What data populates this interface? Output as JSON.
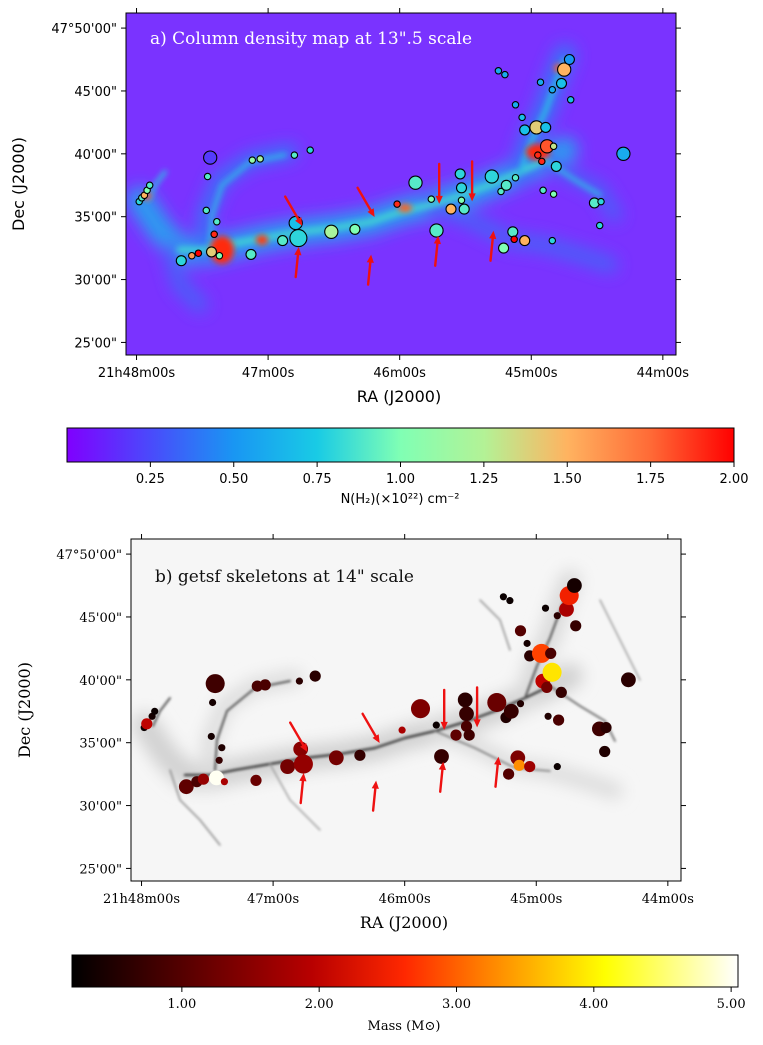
{
  "chart_data": [
    {
      "type": "scatter",
      "panel": "a",
      "title": "a) Column density map at 13\".5 scale",
      "background": "column density image (N(H2) map)",
      "xlabel": "RA (J2000)",
      "ylabel": "Dec (J2000)",
      "x_ticks": [
        {
          "ra_min": 48,
          "label": "21h48m00s"
        },
        {
          "ra_min": 47,
          "label": "47m00s"
        },
        {
          "ra_min": 46,
          "label": "46m00s"
        },
        {
          "ra_min": 45,
          "label": "45m00s"
        },
        {
          "ra_min": 44,
          "label": "44m00s"
        }
      ],
      "y_ticks": [
        {
          "dec_min": 50,
          "label": "47°50'00\""
        },
        {
          "dec_min": 45,
          "label": "45'00\""
        },
        {
          "dec_min": 40,
          "label": "40'00\""
        },
        {
          "dec_min": 35,
          "label": "35'00\""
        },
        {
          "dec_min": 30,
          "label": "30'00\""
        },
        {
          "dec_min": 25,
          "label": "25'00\""
        }
      ],
      "xlim_ra_min": [
        48.08,
        43.9
      ],
      "ylim_dec_min": [
        24.0,
        51.2
      ],
      "colorbar": {
        "label": "N(H₂)(×10²²) cm⁻²",
        "range": [
          0.0,
          2.0
        ],
        "ticks": [
          "0.25",
          "0.50",
          "0.75",
          "1.00",
          "1.25",
          "1.50",
          "1.75",
          "2.00"
        ],
        "colormap": "rainbow (violet → red)"
      },
      "cores": [
        {
          "ra": 47.44,
          "dec": 39.7,
          "size": "L",
          "val": 0.2
        },
        {
          "ra": 47.98,
          "dec": 36.2,
          "size": "S",
          "val": 0.8
        },
        {
          "ra": 47.96,
          "dec": 36.5,
          "size": "S",
          "val": 0.9
        },
        {
          "ra": 47.94,
          "dec": 36.7,
          "size": "S",
          "val": 1.5
        },
        {
          "ra": 47.92,
          "dec": 37.1,
          "size": "S",
          "val": 1.0
        },
        {
          "ra": 47.9,
          "dec": 37.5,
          "size": "S",
          "val": 0.9
        },
        {
          "ra": 47.66,
          "dec": 31.5,
          "size": "M",
          "val": 0.8
        },
        {
          "ra": 47.58,
          "dec": 31.9,
          "size": "S",
          "val": 1.6
        },
        {
          "ra": 47.53,
          "dec": 32.1,
          "size": "S",
          "val": 2.0
        },
        {
          "ra": 47.47,
          "dec": 35.5,
          "size": "S",
          "val": 0.9
        },
        {
          "ra": 47.46,
          "dec": 38.2,
          "size": "S",
          "val": 0.9
        },
        {
          "ra": 47.43,
          "dec": 32.2,
          "size": "M",
          "val": 1.4
        },
        {
          "ra": 47.41,
          "dec": 33.6,
          "size": "S",
          "val": 1.9
        },
        {
          "ra": 47.39,
          "dec": 34.6,
          "size": "S",
          "val": 0.9
        },
        {
          "ra": 47.37,
          "dec": 31.9,
          "size": "S",
          "val": 1.0
        },
        {
          "ra": 47.13,
          "dec": 32.0,
          "size": "M",
          "val": 0.9
        },
        {
          "ra": 47.12,
          "dec": 39.5,
          "size": "S",
          "val": 1.1
        },
        {
          "ra": 47.06,
          "dec": 39.6,
          "size": "S",
          "val": 1.2
        },
        {
          "ra": 46.89,
          "dec": 33.1,
          "size": "M",
          "val": 0.9
        },
        {
          "ra": 46.8,
          "dec": 39.9,
          "size": "S",
          "val": 0.9
        },
        {
          "ra": 46.79,
          "dec": 34.5,
          "size": "L",
          "val": 0.7
        },
        {
          "ra": 46.77,
          "dec": 33.3,
          "size": "XL",
          "val": 0.8
        },
        {
          "ra": 46.68,
          "dec": 40.3,
          "size": "S",
          "val": 0.8
        },
        {
          "ra": 46.52,
          "dec": 33.8,
          "size": "L",
          "val": 1.2
        },
        {
          "ra": 46.34,
          "dec": 34.0,
          "size": "M",
          "val": 1.0
        },
        {
          "ra": 46.02,
          "dec": 36.0,
          "size": "S",
          "val": 1.9
        },
        {
          "ra": 45.88,
          "dec": 37.7,
          "size": "L",
          "val": 0.9
        },
        {
          "ra": 45.76,
          "dec": 36.4,
          "size": "S",
          "val": 1.0
        },
        {
          "ra": 45.72,
          "dec": 33.9,
          "size": "L",
          "val": 0.9
        },
        {
          "ra": 45.61,
          "dec": 35.6,
          "size": "M",
          "val": 1.5
        },
        {
          "ra": 45.54,
          "dec": 38.4,
          "size": "M",
          "val": 0.8
        },
        {
          "ra": 45.53,
          "dec": 37.3,
          "size": "M",
          "val": 0.8
        },
        {
          "ra": 45.53,
          "dec": 36.3,
          "size": "S",
          "val": 1.0
        },
        {
          "ra": 45.51,
          "dec": 35.6,
          "size": "M",
          "val": 0.9
        },
        {
          "ra": 45.3,
          "dec": 38.2,
          "size": "L",
          "val": 0.8
        },
        {
          "ra": 45.25,
          "dec": 46.6,
          "size": "S",
          "val": 0.6
        },
        {
          "ra": 45.23,
          "dec": 37.0,
          "size": "S",
          "val": 0.9
        },
        {
          "ra": 45.21,
          "dec": 32.5,
          "size": "M",
          "val": 1.0
        },
        {
          "ra": 45.2,
          "dec": 46.3,
          "size": "S",
          "val": 0.6
        },
        {
          "ra": 45.19,
          "dec": 37.5,
          "size": "M",
          "val": 0.9
        },
        {
          "ra": 45.14,
          "dec": 33.8,
          "size": "M",
          "val": 0.9
        },
        {
          "ra": 45.13,
          "dec": 33.2,
          "size": "S",
          "val": 2.0
        },
        {
          "ra": 45.12,
          "dec": 38.1,
          "size": "S",
          "val": 0.9
        },
        {
          "ra": 45.12,
          "dec": 43.9,
          "size": "S",
          "val": 0.6
        },
        {
          "ra": 45.07,
          "dec": 42.9,
          "size": "S",
          "val": 0.7
        },
        {
          "ra": 45.05,
          "dec": 33.1,
          "size": "M",
          "val": 1.5
        },
        {
          "ra": 45.05,
          "dec": 41.9,
          "size": "M",
          "val": 0.7
        },
        {
          "ra": 44.96,
          "dec": 42.1,
          "size": "L",
          "val": 1.4
        },
        {
          "ra": 44.95,
          "dec": 39.9,
          "size": "S",
          "val": 1.9
        },
        {
          "ra": 44.93,
          "dec": 45.7,
          "size": "S",
          "val": 0.6
        },
        {
          "ra": 44.92,
          "dec": 39.4,
          "size": "S",
          "val": 1.9
        },
        {
          "ra": 44.91,
          "dec": 37.1,
          "size": "S",
          "val": 0.9
        },
        {
          "ra": 44.89,
          "dec": 42.1,
          "size": "M",
          "val": 0.7
        },
        {
          "ra": 44.88,
          "dec": 40.6,
          "size": "L",
          "val": 1.8
        },
        {
          "ra": 44.84,
          "dec": 33.1,
          "size": "S",
          "val": 0.8
        },
        {
          "ra": 44.84,
          "dec": 45.1,
          "size": "S",
          "val": 0.6
        },
        {
          "ra": 44.83,
          "dec": 40.6,
          "size": "S",
          "val": 1.3
        },
        {
          "ra": 44.83,
          "dec": 36.8,
          "size": "S",
          "val": 1.0
        },
        {
          "ra": 44.81,
          "dec": 39.0,
          "size": "M",
          "val": 0.8
        },
        {
          "ra": 44.77,
          "dec": 45.6,
          "size": "M",
          "val": 0.7
        },
        {
          "ra": 44.75,
          "dec": 46.7,
          "size": "L",
          "val": 1.5
        },
        {
          "ra": 44.71,
          "dec": 47.5,
          "size": "M",
          "val": 0.5
        },
        {
          "ra": 44.7,
          "dec": 44.3,
          "size": "S",
          "val": 0.7
        },
        {
          "ra": 44.52,
          "dec": 36.1,
          "size": "M",
          "val": 0.9
        },
        {
          "ra": 44.48,
          "dec": 34.3,
          "size": "S",
          "val": 0.8
        },
        {
          "ra": 44.47,
          "dec": 36.2,
          "size": "S",
          "val": 0.8
        },
        {
          "ra": 44.3,
          "dec": 40.0,
          "size": "L",
          "val": 0.6
        }
      ],
      "arrows": [
        {
          "x": 46.87,
          "y": 36.6,
          "dir": "down-right"
        },
        {
          "x": 46.79,
          "y": 30.2,
          "dir": "up"
        },
        {
          "x": 46.32,
          "y": 37.3,
          "dir": "down-right"
        },
        {
          "x": 46.24,
          "y": 29.6,
          "dir": "up"
        },
        {
          "x": 45.7,
          "y": 39.2,
          "dir": "down"
        },
        {
          "x": 45.73,
          "y": 31.1,
          "dir": "up"
        },
        {
          "x": 45.45,
          "y": 39.4,
          "dir": "down"
        },
        {
          "x": 45.31,
          "y": 31.5,
          "dir": "up"
        }
      ]
    },
    {
      "type": "scatter",
      "panel": "b",
      "title": "b) getsf skeletons at 14\" scale",
      "background": "grayscale image with getsf filament skeletons",
      "xlabel": "RA (J2000)",
      "ylabel": "Dec (J2000)",
      "x_ticks": [
        {
          "ra_min": 48,
          "label": "21h48m00s"
        },
        {
          "ra_min": 47,
          "label": "47m00s"
        },
        {
          "ra_min": 46,
          "label": "46m00s"
        },
        {
          "ra_min": 45,
          "label": "45m00s"
        },
        {
          "ra_min": 44,
          "label": "44m00s"
        }
      ],
      "y_ticks": [
        {
          "dec_min": 50,
          "label": "47°50'00\""
        },
        {
          "dec_min": 45,
          "label": "45'00\""
        },
        {
          "dec_min": 40,
          "label": "40'00\""
        },
        {
          "dec_min": 35,
          "label": "35'00\""
        },
        {
          "dec_min": 30,
          "label": "30'00\""
        },
        {
          "dec_min": 25,
          "label": "25'00\""
        }
      ],
      "xlim_ra_min": [
        48.08,
        43.9
      ],
      "ylim_dec_min": [
        24.0,
        51.2
      ],
      "colorbar": {
        "label": "Mass (M⊙)",
        "range": [
          0.2,
          5.05
        ],
        "ticks": [
          "1.00",
          "2.00",
          "3.00",
          "4.00",
          "5.00"
        ],
        "colormap": "afmhot (black → red → yellow → white)"
      },
      "cores": [
        {
          "ra": 47.44,
          "dec": 39.7,
          "size": "XL",
          "mass": 0.8
        },
        {
          "ra": 47.98,
          "dec": 36.2,
          "size": "S",
          "mass": 0.3
        },
        {
          "ra": 47.96,
          "dec": 36.5,
          "size": "M",
          "mass": 2.0
        },
        {
          "ra": 47.92,
          "dec": 37.1,
          "size": "S",
          "mass": 0.4
        },
        {
          "ra": 47.9,
          "dec": 37.5,
          "size": "S",
          "mass": 0.3
        },
        {
          "ra": 47.66,
          "dec": 31.5,
          "size": "L",
          "mass": 1.1
        },
        {
          "ra": 47.58,
          "dec": 31.9,
          "size": "M",
          "mass": 0.9
        },
        {
          "ra": 47.53,
          "dec": 32.1,
          "size": "M",
          "mass": 1.6
        },
        {
          "ra": 47.47,
          "dec": 35.5,
          "size": "S",
          "mass": 0.4
        },
        {
          "ra": 47.46,
          "dec": 38.2,
          "size": "S",
          "mass": 0.4
        },
        {
          "ra": 47.43,
          "dec": 32.2,
          "size": "L",
          "mass": 5.0
        },
        {
          "ra": 47.41,
          "dec": 33.6,
          "size": "S",
          "mass": 0.7
        },
        {
          "ra": 47.39,
          "dec": 34.6,
          "size": "S",
          "mass": 0.5
        },
        {
          "ra": 47.37,
          "dec": 31.9,
          "size": "S",
          "mass": 1.8
        },
        {
          "ra": 47.13,
          "dec": 32.0,
          "size": "M",
          "mass": 1.2
        },
        {
          "ra": 47.12,
          "dec": 39.5,
          "size": "M",
          "mass": 0.9
        },
        {
          "ra": 47.06,
          "dec": 39.6,
          "size": "M",
          "mass": 0.9
        },
        {
          "ra": 46.89,
          "dec": 33.1,
          "size": "L",
          "mass": 1.3
        },
        {
          "ra": 46.8,
          "dec": 39.9,
          "size": "S",
          "mass": 0.6
        },
        {
          "ra": 46.79,
          "dec": 34.5,
          "size": "L",
          "mass": 1.5
        },
        {
          "ra": 46.77,
          "dec": 33.3,
          "size": "XL",
          "mass": 1.6
        },
        {
          "ra": 46.68,
          "dec": 40.3,
          "size": "M",
          "mass": 0.6
        },
        {
          "ra": 46.52,
          "dec": 33.8,
          "size": "L",
          "mass": 1.3
        },
        {
          "ra": 46.34,
          "dec": 34.0,
          "size": "M",
          "mass": 0.7
        },
        {
          "ra": 46.02,
          "dec": 36.0,
          "size": "S",
          "mass": 1.8
        },
        {
          "ra": 45.88,
          "dec": 37.7,
          "size": "XL",
          "mass": 1.4
        },
        {
          "ra": 45.76,
          "dec": 36.4,
          "size": "S",
          "mass": 0.3
        },
        {
          "ra": 45.72,
          "dec": 33.9,
          "size": "L",
          "mass": 0.7
        },
        {
          "ra": 45.61,
          "dec": 35.6,
          "size": "M",
          "mass": 1.1
        },
        {
          "ra": 45.54,
          "dec": 38.4,
          "size": "L",
          "mass": 0.6
        },
        {
          "ra": 45.53,
          "dec": 37.3,
          "size": "L",
          "mass": 0.7
        },
        {
          "ra": 45.53,
          "dec": 36.3,
          "size": "M",
          "mass": 0.9
        },
        {
          "ra": 45.51,
          "dec": 35.6,
          "size": "M",
          "mass": 0.8
        },
        {
          "ra": 45.3,
          "dec": 38.2,
          "size": "XL",
          "mass": 1.2
        },
        {
          "ra": 45.25,
          "dec": 46.6,
          "size": "S",
          "mass": 0.3
        },
        {
          "ra": 45.23,
          "dec": 37.0,
          "size": "M",
          "mass": 0.5
        },
        {
          "ra": 45.21,
          "dec": 32.5,
          "size": "M",
          "mass": 1.0
        },
        {
          "ra": 45.2,
          "dec": 46.3,
          "size": "S",
          "mass": 0.3
        },
        {
          "ra": 45.19,
          "dec": 37.5,
          "size": "L",
          "mass": 0.7
        },
        {
          "ra": 45.14,
          "dec": 33.8,
          "size": "L",
          "mass": 1.4
        },
        {
          "ra": 45.13,
          "dec": 33.2,
          "size": "M",
          "mass": 3.3
        },
        {
          "ra": 45.12,
          "dec": 38.1,
          "size": "S",
          "mass": 0.5
        },
        {
          "ra": 45.12,
          "dec": 43.9,
          "size": "M",
          "mass": 1.0
        },
        {
          "ra": 45.07,
          "dec": 42.9,
          "size": "S",
          "mass": 0.4
        },
        {
          "ra": 45.05,
          "dec": 33.1,
          "size": "M",
          "mass": 1.7
        },
        {
          "ra": 45.05,
          "dec": 41.9,
          "size": "M",
          "mass": 0.6
        },
        {
          "ra": 44.96,
          "dec": 42.1,
          "size": "XL",
          "mass": 2.8
        },
        {
          "ra": 44.95,
          "dec": 39.9,
          "size": "L",
          "mass": 2.0
        },
        {
          "ra": 44.93,
          "dec": 45.7,
          "size": "S",
          "mass": 0.3
        },
        {
          "ra": 44.92,
          "dec": 39.4,
          "size": "M",
          "mass": 1.3
        },
        {
          "ra": 44.91,
          "dec": 37.1,
          "size": "S",
          "mass": 0.5
        },
        {
          "ra": 44.89,
          "dec": 42.1,
          "size": "M",
          "mass": 0.9
        },
        {
          "ra": 44.88,
          "dec": 40.6,
          "size": "XL",
          "mass": 3.9
        },
        {
          "ra": 44.84,
          "dec": 33.1,
          "size": "S",
          "mass": 0.3
        },
        {
          "ra": 44.84,
          "dec": 45.1,
          "size": "S",
          "mass": 0.6
        },
        {
          "ra": 44.83,
          "dec": 36.8,
          "size": "M",
          "mass": 0.9
        },
        {
          "ra": 44.81,
          "dec": 39.0,
          "size": "M",
          "mass": 0.7
        },
        {
          "ra": 44.77,
          "dec": 45.6,
          "size": "L",
          "mass": 1.8
        },
        {
          "ra": 44.75,
          "dec": 46.7,
          "size": "XL",
          "mass": 2.5
        },
        {
          "ra": 44.71,
          "dec": 47.5,
          "size": "L",
          "mass": 0.4
        },
        {
          "ra": 44.7,
          "dec": 44.3,
          "size": "M",
          "mass": 0.7
        },
        {
          "ra": 44.52,
          "dec": 36.1,
          "size": "L",
          "mass": 0.8
        },
        {
          "ra": 44.48,
          "dec": 34.3,
          "size": "M",
          "mass": 0.5
        },
        {
          "ra": 44.47,
          "dec": 36.2,
          "size": "M",
          "mass": 0.6
        },
        {
          "ra": 44.3,
          "dec": 40.0,
          "size": "L",
          "mass": 0.6
        }
      ],
      "arrows": [
        {
          "x": 46.87,
          "y": 36.6,
          "dir": "down-right"
        },
        {
          "x": 46.79,
          "y": 30.2,
          "dir": "up"
        },
        {
          "x": 46.32,
          "y": 37.3,
          "dir": "down-right"
        },
        {
          "x": 46.24,
          "y": 29.6,
          "dir": "up"
        },
        {
          "x": 45.7,
          "y": 39.2,
          "dir": "down"
        },
        {
          "x": 45.73,
          "y": 31.1,
          "dir": "up"
        },
        {
          "x": 45.45,
          "y": 39.4,
          "dir": "down"
        },
        {
          "x": 45.31,
          "y": 31.5,
          "dir": "up"
        }
      ]
    }
  ],
  "colors": {
    "arrow": "#ee1111",
    "panel_a_background": "#7a33ff",
    "panel_b_background": "#f6f6f6"
  }
}
